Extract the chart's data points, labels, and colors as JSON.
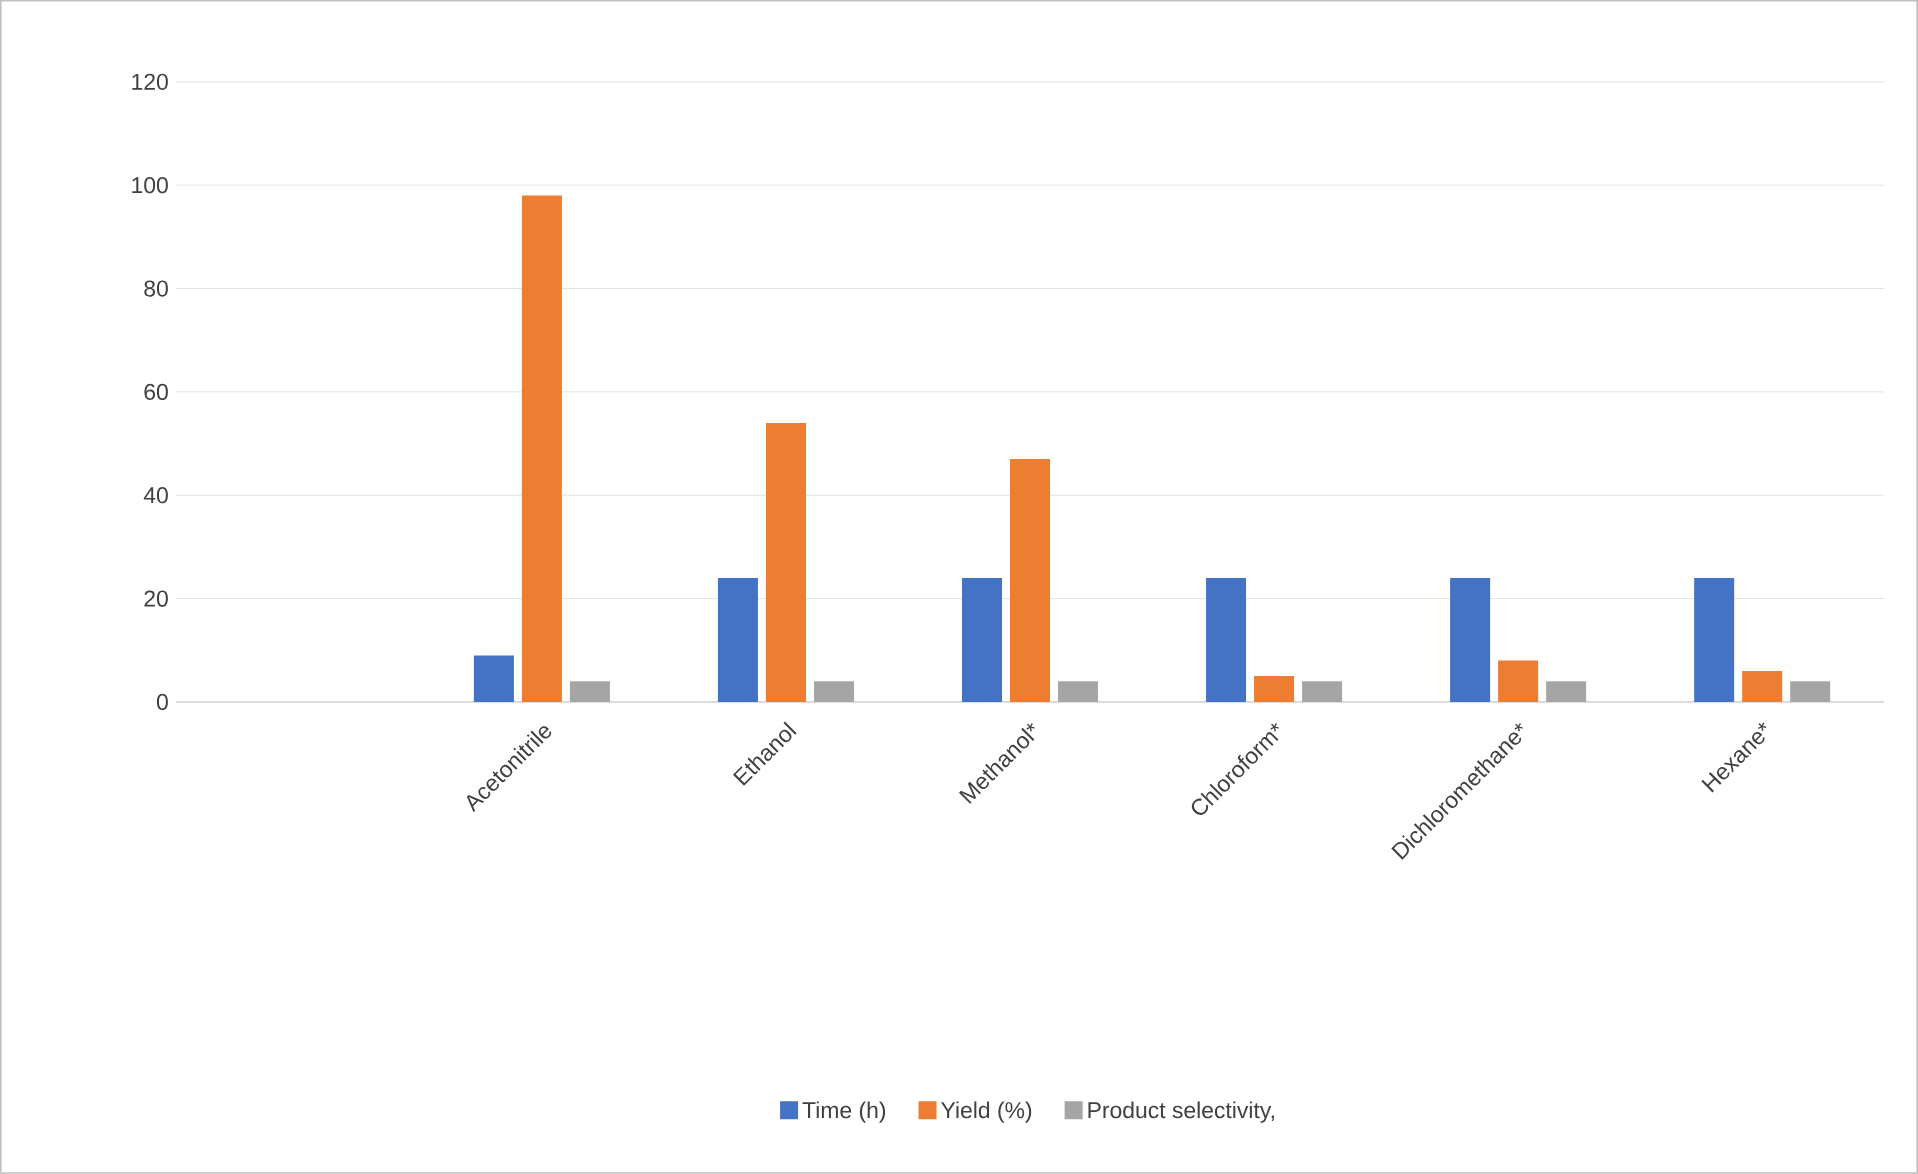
{
  "chart_data": {
    "type": "bar",
    "categories": [
      null,
      "Acetonitrile",
      "Ethanol",
      "Methanol*",
      "Chloroform*",
      "Dichloromethane*",
      "Hexane*"
    ],
    "series": [
      {
        "name": "Time (h)",
        "color": "#4472c4",
        "values": [
          null,
          9,
          24,
          24,
          24,
          24,
          24
        ]
      },
      {
        "name": "Yield (%)",
        "color": "#ed7d31",
        "values": [
          null,
          98,
          54,
          47,
          5,
          8,
          6
        ]
      },
      {
        "name": "Product selectivity,",
        "color": "#a5a5a5",
        "values": [
          null,
          4,
          4,
          4,
          4,
          4,
          4
        ]
      }
    ],
    "ylim": [
      0,
      120
    ],
    "yticks": [
      0,
      20,
      40,
      60,
      80,
      100,
      120
    ],
    "grid": "y",
    "legend": "bottom"
  }
}
